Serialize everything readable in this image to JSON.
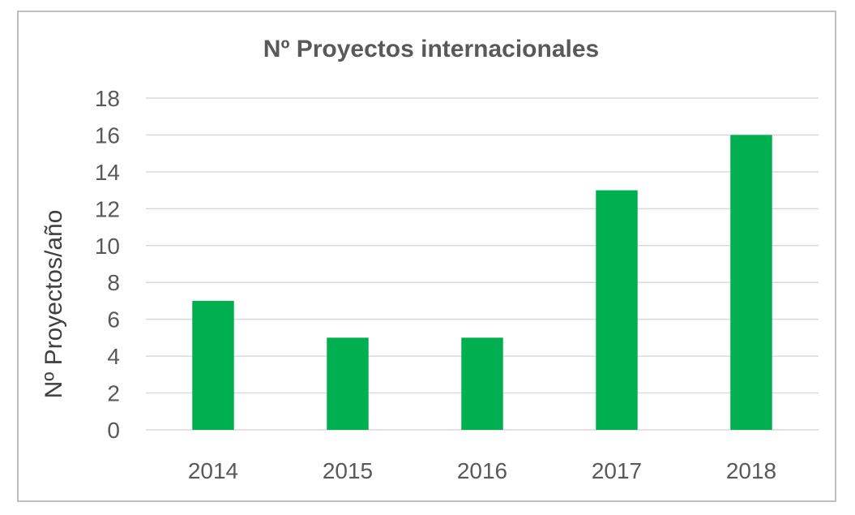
{
  "colors": {
    "bar": "#00b050",
    "grid": "#d9d9d9",
    "text": "#595959",
    "border": "#bfbfbf"
  },
  "chart_data": {
    "type": "bar",
    "title": "Nº Proyectos internacionales",
    "xlabel": "",
    "ylabel": "Nº Proyectos/año",
    "categories": [
      "2014",
      "2015",
      "2016",
      "2017",
      "2018"
    ],
    "values": [
      7,
      5,
      5,
      13,
      16
    ],
    "ylim": [
      0,
      18
    ],
    "yticks": [
      "0",
      "2",
      "4",
      "6",
      "8",
      "10",
      "12",
      "14",
      "16",
      "18"
    ],
    "grid": true,
    "legend": "none"
  }
}
